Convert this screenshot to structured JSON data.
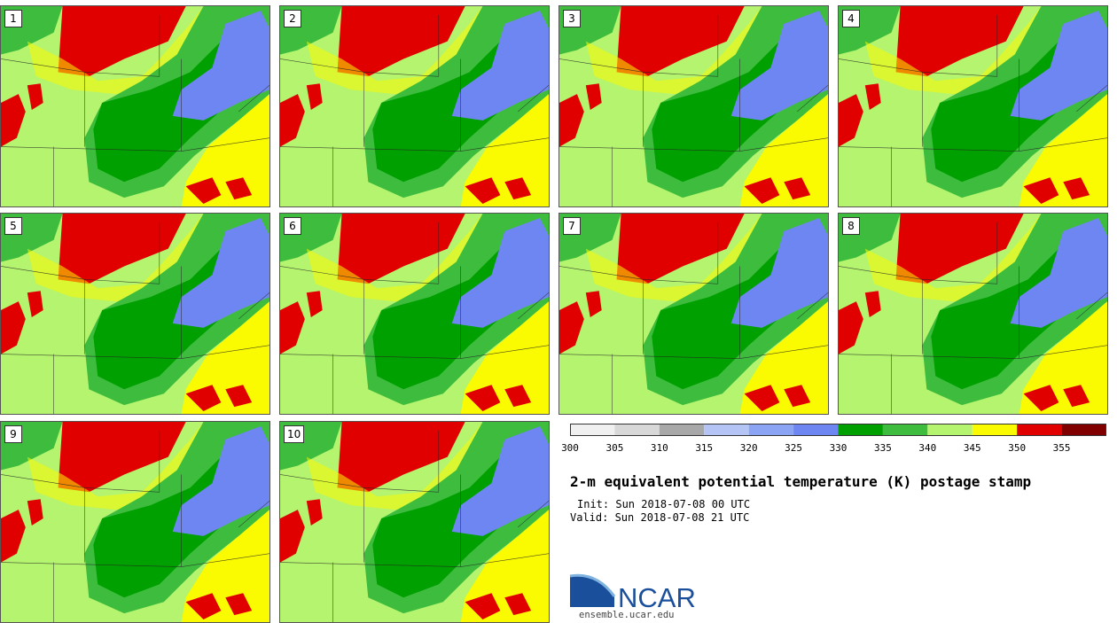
{
  "panels": [
    {
      "label": "1"
    },
    {
      "label": "2"
    },
    {
      "label": "3"
    },
    {
      "label": "4"
    },
    {
      "label": "5"
    },
    {
      "label": "6"
    },
    {
      "label": "7"
    },
    {
      "label": "8"
    },
    {
      "label": "9"
    },
    {
      "label": "10"
    }
  ],
  "colorbar": {
    "ticks": [
      "300",
      "305",
      "310",
      "315",
      "320",
      "325",
      "330",
      "335",
      "340",
      "345",
      "350",
      "355"
    ],
    "colors": [
      "#f0f0f0",
      "#d8d8d8",
      "#a8a8a8",
      "#b4c4f4",
      "#8ca4f4",
      "#6e86f2",
      "#00a000",
      "#3ebc3e",
      "#b4f46e",
      "#fafa00",
      "#e00000",
      "#800000"
    ]
  },
  "title": "2-m equivalent potential temperature (K) postage stamp",
  "init": "Init: Sun 2018-07-08 00 UTC",
  "valid": "Valid: Sun 2018-07-08 21 UTC",
  "logo": {
    "text": "NCAR",
    "url": "ensemble.ucar.edu"
  }
}
